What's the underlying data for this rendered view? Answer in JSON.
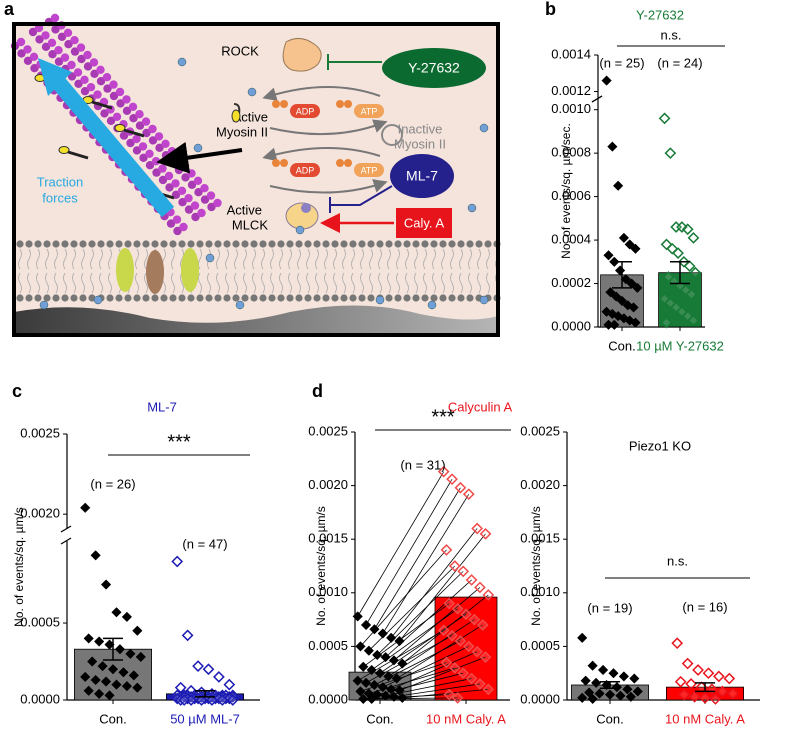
{
  "diagram": {
    "panel": "a",
    "labels": {
      "rock": "ROCK",
      "y27632": "Y-27632",
      "active_myosin": [
        "Active",
        "Myosin II"
      ],
      "adp1": "ADP",
      "atp1": "ATP",
      "adp2": "ADP",
      "atp2": "ATP",
      "inactive_myosin": [
        "Inactive",
        "Myosin II"
      ],
      "ml7": "ML-7",
      "active_mlck": [
        "Active",
        "MLCK"
      ],
      "calya": "Caly. A",
      "traction": [
        "Traction",
        "forces"
      ]
    }
  },
  "chart_data": [
    {
      "type": "bar_scatter",
      "panel": "b",
      "title": "Y-27632",
      "title_color": "#177a36",
      "ylabel": "No. of events/sq. µm/sec.",
      "ylim": [
        0,
        0.0014
      ],
      "ybreak": [
        0.00104,
        0.00117
      ],
      "yticks": [
        {
          "value": 0,
          "label": "0.0000"
        },
        {
          "value": 0.0002,
          "label": "0.0002"
        },
        {
          "value": 0.0004,
          "label": "0.0004"
        },
        {
          "value": 0.0006,
          "label": "0.0006"
        },
        {
          "value": 0.0008,
          "label": "0.0008"
        },
        {
          "value": 0.001,
          "label": "0.0010"
        },
        {
          "value": 0.0012,
          "label": "0.0012"
        },
        {
          "value": 0.0014,
          "label": "0.0014"
        }
      ],
      "annotation": "n.s.",
      "n_labels": [
        "(n = 25)",
        "(n = 24)"
      ],
      "paired": false,
      "groups": [
        {
          "label": "Con.",
          "label_color": "#000000",
          "marker_color": "#000000",
          "filled": true,
          "bar_color": "#777777",
          "mean": 0.00024,
          "sem": 6e-05,
          "values": [
            0.00126,
            0.00083,
            0.00065,
            0.00041,
            0.00038,
            0.00036,
            0.00033,
            0.0003,
            0.00026,
            0.00022,
            0.0002,
            0.00018,
            0.00016,
            0.00014,
            0.00012,
            0.0001,
            9e-05,
            7e-05,
            6e-05,
            5e-05,
            4e-05,
            3e-05,
            2e-05,
            1e-05,
            1e-05
          ]
        },
        {
          "label": "10 µM Y-27632",
          "label_color": "#177a36",
          "marker_color": "#177a36",
          "filled": false,
          "bar_color": "#177a36",
          "mean": 0.00025,
          "sem": 5e-05,
          "values": [
            0.00096,
            0.0008,
            0.00046,
            0.00046,
            0.00045,
            0.00041,
            0.00038,
            0.00036,
            0.00034,
            0.0003,
            0.00028,
            0.00025,
            0.00023,
            0.00021,
            0.00019,
            0.00017,
            0.00015,
            0.00013,
            0.00011,
            9e-05,
            7e-05,
            5e-05,
            3e-05,
            2e-05
          ]
        }
      ]
    },
    {
      "type": "bar_scatter",
      "panel": "c",
      "title": "ML-7",
      "title_color": "#1c1cb4",
      "ylabel": "No. of events/sq. µm/s",
      "ylim": [
        0,
        0.0025
      ],
      "ybreak": [
        0.00102,
        0.00192
      ],
      "yticks": [
        {
          "value": 0,
          "label": "0.0000"
        },
        {
          "value": 0.0005,
          "label": "0.0005"
        },
        {
          "value": 0.002,
          "label": "0.0020"
        },
        {
          "value": 0.0025,
          "label": "0.0025"
        }
      ],
      "annotation": "***",
      "n_labels": [
        "(n = 26)",
        "(n = 47)"
      ],
      "paired": false,
      "groups": [
        {
          "label": "Con.",
          "label_color": "#000000",
          "marker_color": "#000000",
          "filled": true,
          "bar_color": "#777777",
          "mean": 0.00033,
          "sem": 7e-05,
          "values": [
            0.00204,
            0.00094,
            0.00075,
            0.00057,
            0.00054,
            0.00045,
            0.0004,
            0.00038,
            0.00036,
            0.00033,
            0.0003,
            0.00028,
            0.00025,
            0.00022,
            0.0002,
            0.00018,
            0.00016,
            0.00015,
            0.00013,
            0.00012,
            0.0001,
            9e-05,
            8e-05,
            6e-05,
            4e-05,
            3e-05
          ]
        },
        {
          "label": "50 µM ML-7",
          "label_color": "#1c1cb4",
          "marker_color": "#1c1cb4",
          "filled": false,
          "bar_color": "#1c1cb4",
          "mean": 4e-05,
          "sem": 2e-05,
          "values": [
            0.0009,
            0.00042,
            0.00022,
            0.0002,
            0.00015,
            0.0001,
            8e-05,
            6e-05,
            5e-05,
            4e-05,
            3e-05,
            3e-05,
            3e-05,
            3e-05,
            3e-05,
            3e-05,
            3e-05,
            3e-05,
            3e-05,
            3e-05,
            2e-05,
            2e-05,
            2e-05,
            2e-05,
            2e-05,
            2e-05,
            2e-05,
            2e-05,
            2e-05,
            2e-05,
            1e-05,
            1e-05,
            1e-05,
            1e-05,
            1e-05,
            1e-05,
            1e-05,
            1e-05,
            1e-05,
            1e-05,
            0,
            0,
            0,
            0,
            0,
            0,
            0
          ]
        }
      ]
    },
    {
      "type": "bar_scatter",
      "panel": "d",
      "title": "Calyculin A",
      "title_color": "#e8141c",
      "ylabel": "No. of events/sq. µm/s",
      "ylim": [
        0,
        0.0025
      ],
      "yticks": [
        {
          "value": 0,
          "label": "0.0000"
        },
        {
          "value": 0.0005,
          "label": "0.0005"
        },
        {
          "value": 0.001,
          "label": "0.0010"
        },
        {
          "value": 0.0015,
          "label": "0.0015"
        },
        {
          "value": 0.002,
          "label": "0.0020"
        },
        {
          "value": 0.0025,
          "label": "0.0025"
        }
      ],
      "annotation": "***",
      "n_labels": [
        "(n = 31)"
      ],
      "paired": true,
      "groups": [
        {
          "label": "Con.",
          "label_color": "#000000",
          "marker_color": "#000000",
          "filled": true,
          "bar_color": "#777777",
          "mean": 0.00026,
          "values": [
            0.00078,
            0.0007,
            0.00066,
            0.00062,
            0.00058,
            0.00055,
            0.0005,
            0.00046,
            0.00042,
            0.0004,
            0.00037,
            0.00034,
            0.00031,
            0.00028,
            0.00025,
            0.00022,
            0.0002,
            0.00018,
            0.00016,
            0.00014,
            0.00012,
            0.0001,
            9e-05,
            8e-05,
            6e-05,
            5e-05,
            4e-05,
            3e-05,
            2e-05,
            1e-05,
            1e-05
          ]
        },
        {
          "label": "10 nM Caly. A",
          "label_color": "#e8141c",
          "marker_color": "#f04a4a",
          "filled": false,
          "bar_color": "#ff0000",
          "mean": 0.00096,
          "values": [
            0.00213,
            0.00206,
            0.00198,
            0.00192,
            0.0016,
            0.00155,
            0.0014,
            0.00125,
            0.0012,
            0.00112,
            0.00105,
            0.00098,
            0.0009,
            0.00085,
            0.0008,
            0.00075,
            0.0007,
            0.00065,
            0.0006,
            0.00055,
            0.0005,
            0.00045,
            0.0004,
            0.00035,
            0.0003,
            0.00025,
            0.0002,
            0.00015,
            0.0001,
            5e-05,
            2e-05
          ]
        }
      ]
    },
    {
      "type": "bar_scatter",
      "title": "Piezo1 KO",
      "title_color": "#000000",
      "ylabel": "No. of events/sq. µm/s",
      "ylim": [
        0,
        0.0025
      ],
      "yticks": [
        {
          "value": 0,
          "label": "0.0000"
        },
        {
          "value": 0.0005,
          "label": "0.0005"
        },
        {
          "value": 0.001,
          "label": "0.0010"
        },
        {
          "value": 0.0015,
          "label": "0.0015"
        },
        {
          "value": 0.002,
          "label": "0.0020"
        },
        {
          "value": 0.0025,
          "label": "0.0025"
        }
      ],
      "annotation": "n.s.",
      "n_labels": [
        "(n = 19)",
        "(n = 16)"
      ],
      "paired": false,
      "groups": [
        {
          "label": "Con.",
          "label_color": "#000000",
          "marker_color": "#000000",
          "filled": true,
          "bar_color": "#777777",
          "mean": 0.00014,
          "sem": 3e-05,
          "values": [
            0.00058,
            0.00032,
            0.00028,
            0.00025,
            0.00022,
            0.0002,
            0.00018,
            0.00016,
            0.00014,
            0.00012,
            0.0001,
            8e-05,
            7e-05,
            6e-05,
            5e-05,
            4e-05,
            3e-05,
            2e-05,
            1e-05
          ]
        },
        {
          "label": "10 nM Caly. A",
          "label_color": "#e8141c",
          "marker_color": "#e8141c",
          "filled": false,
          "bar_color": "#ff0000",
          "mean": 0.00012,
          "sem": 4e-05,
          "values": [
            0.00053,
            0.00034,
            0.00028,
            0.00025,
            0.00022,
            0.0002,
            0.00017,
            0.00015,
            0.00012,
            0.0001,
            8e-05,
            6e-05,
            5e-05,
            3e-05,
            2e-05,
            1e-05
          ]
        }
      ]
    }
  ]
}
